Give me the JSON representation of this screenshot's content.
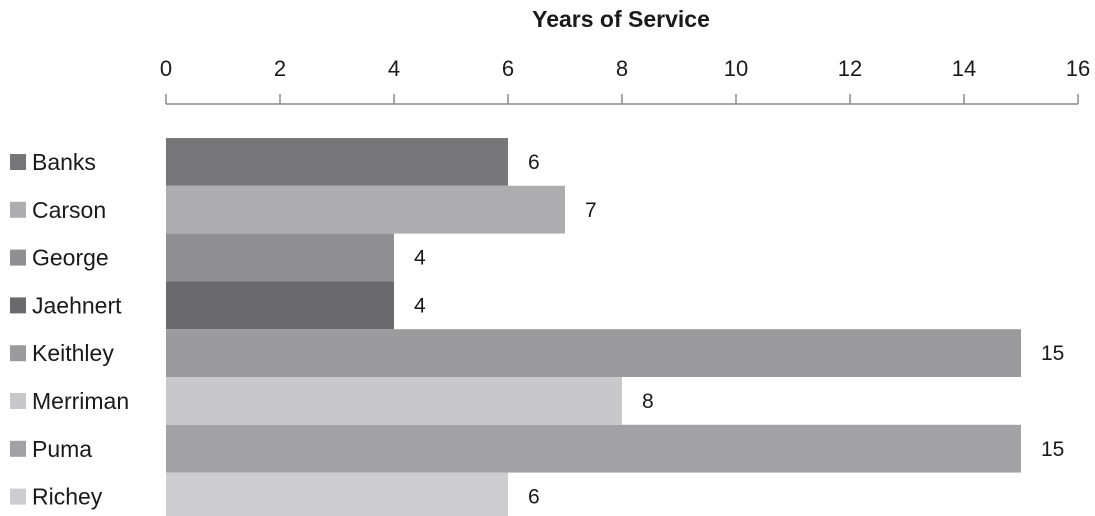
{
  "chart_data": {
    "type": "bar",
    "orientation": "horizontal",
    "title": "",
    "xlabel": "Years of Service",
    "ylabel": "",
    "xlim": [
      0,
      16
    ],
    "x_ticks": [
      0,
      2,
      4,
      6,
      8,
      10,
      12,
      14,
      16
    ],
    "x_axis_position": "top",
    "grid": false,
    "legend": "left",
    "categories": [
      "Banks",
      "Carson",
      "George",
      "Jaehnert",
      "Keithley",
      "Merriman",
      "Puma",
      "Richey"
    ],
    "values": [
      6,
      7,
      4,
      4,
      15,
      8,
      15,
      6
    ],
    "data_labels": [
      "6",
      "7",
      "4",
      "4",
      "15",
      "8",
      "15",
      "6"
    ],
    "colors": [
      "#77777a",
      "#adadb0",
      "#8f8f92",
      "#6a6a6d",
      "#9b9b9e",
      "#c8c8ca",
      "#a2a2a5",
      "#cdcdcf"
    ]
  }
}
